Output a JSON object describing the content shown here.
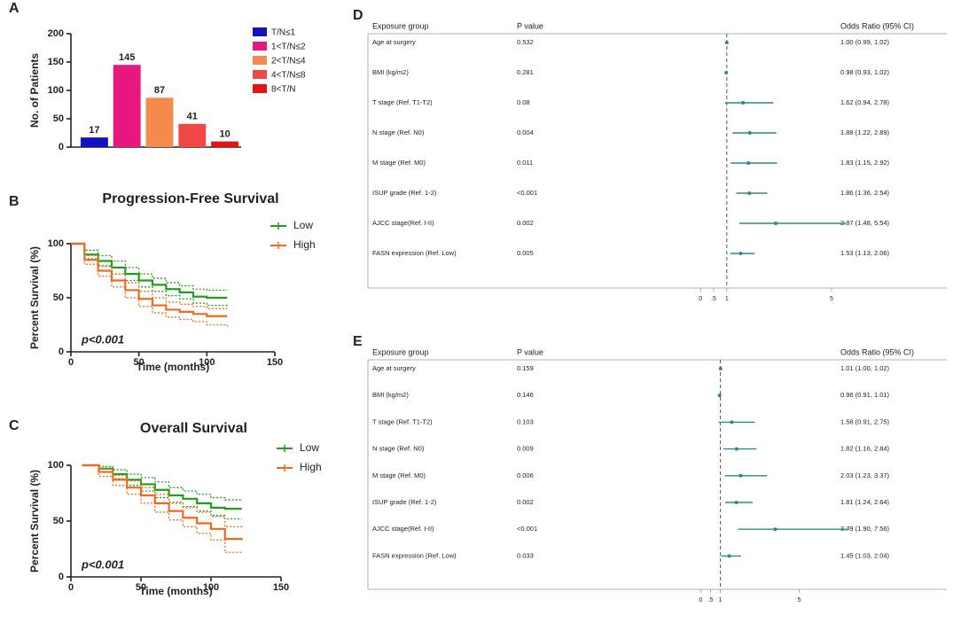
{
  "chart_data": [
    {
      "type": "bar",
      "panel": "A",
      "ylabel": "No. of Patients",
      "categories": [
        "T/N≤1",
        "1<T/N≤2",
        "2<T/N≤4",
        "4<T/N≤8",
        "8<T/N"
      ],
      "values": [
        17,
        145,
        87,
        41,
        10
      ],
      "colors": [
        "#1212c4",
        "#e8177e",
        "#f58a4e",
        "#f04646",
        "#e81212"
      ],
      "ylim": [
        0,
        200
      ],
      "yticks": [
        0,
        50,
        100,
        150,
        200
      ]
    },
    {
      "type": "line",
      "panel": "B",
      "title": "Progression-Free Survival",
      "xlabel": "Time (months)",
      "ylabel": "Percent Survival (%)",
      "annotation": "p<0.001",
      "x": [
        0,
        10,
        20,
        30,
        40,
        50,
        60,
        70,
        80,
        90,
        100,
        115
      ],
      "series": [
        {
          "name": "Low",
          "color": "#1f9e1f",
          "values": [
            100,
            90,
            84,
            78,
            72,
            66,
            62,
            58,
            55,
            51,
            50,
            50
          ],
          "lower": [
            100,
            86,
            79,
            72,
            66,
            60,
            56,
            52,
            49,
            45,
            43,
            42
          ],
          "upper": [
            100,
            94,
            89,
            84,
            78,
            72,
            68,
            64,
            61,
            58,
            57,
            57
          ]
        },
        {
          "name": "High",
          "color": "#f06a1e",
          "values": [
            100,
            85,
            75,
            66,
            57,
            49,
            43,
            39,
            37,
            35,
            33,
            33
          ],
          "lower": [
            100,
            81,
            70,
            60,
            50,
            42,
            36,
            32,
            30,
            28,
            25,
            22
          ],
          "upper": [
            100,
            89,
            80,
            72,
            64,
            56,
            50,
            46,
            44,
            42,
            40,
            40
          ]
        }
      ],
      "xlim": [
        0,
        150
      ],
      "xticks": [
        0,
        50,
        100,
        150
      ],
      "ylim": [
        0,
        100
      ],
      "yticks": [
        0,
        50,
        100
      ]
    },
    {
      "type": "line",
      "panel": "C",
      "title": "Overall Survival",
      "xlabel": "Time (months)",
      "ylabel": "Percent Survival (%)",
      "annotation": "p<0.001",
      "x": [
        8,
        20,
        30,
        40,
        50,
        60,
        70,
        80,
        90,
        100,
        110,
        122
      ],
      "series": [
        {
          "name": "Low",
          "color": "#1f9e1f",
          "values": [
            100,
            97,
            92,
            87,
            83,
            78,
            73,
            70,
            66,
            62,
            61,
            61
          ],
          "lower": [
            100,
            94,
            88,
            82,
            77,
            71,
            66,
            63,
            59,
            55,
            52,
            52
          ],
          "upper": [
            100,
            99,
            96,
            92,
            89,
            85,
            80,
            77,
            74,
            71,
            69,
            68
          ]
        },
        {
          "name": "High",
          "color": "#f06a1e",
          "values": [
            100,
            94,
            87,
            80,
            73,
            66,
            59,
            53,
            48,
            43,
            34,
            33
          ],
          "lower": [
            100,
            90,
            82,
            74,
            66,
            58,
            51,
            45,
            39,
            33,
            22,
            21
          ],
          "upper": [
            100,
            97,
            91,
            86,
            80,
            74,
            67,
            62,
            58,
            54,
            45,
            44
          ]
        }
      ],
      "xlim": [
        0,
        150
      ],
      "xticks": [
        0,
        50,
        100,
        150
      ],
      "ylim": [
        0,
        100
      ],
      "yticks": [
        0,
        50,
        100
      ]
    },
    {
      "type": "forest",
      "panel": "D",
      "headers": [
        "Exposure group",
        "P value",
        "Odds Ratio (95% CI)"
      ],
      "ref": 1,
      "color": "#2a8a8a",
      "rows": [
        {
          "label": "Age at surgery",
          "p": "0.532",
          "or": 1.0,
          "lo": 0.99,
          "hi": 1.02,
          "ci_label": "1.00 (0.99, 1.02)"
        },
        {
          "label": "BMI (kg/m2)",
          "p": "0.281",
          "or": 0.98,
          "lo": 0.93,
          "hi": 1.02,
          "ci_label": "0.98 (0.93, 1.02)"
        },
        {
          "label": "T stage (Ref. T1-T2)",
          "p": "0.08",
          "or": 1.62,
          "lo": 0.94,
          "hi": 2.78,
          "ci_label": "1.62 (0.94, 2.78)"
        },
        {
          "label": "N stage (Ref. N0)",
          "p": "0.004",
          "or": 1.88,
          "lo": 1.22,
          "hi": 2.89,
          "ci_label": "1.88 (1.22, 2.89)"
        },
        {
          "label": "M stage (Ref. M0)",
          "p": "0.011",
          "or": 1.83,
          "lo": 1.15,
          "hi": 2.92,
          "ci_label": "1.83 (1.15, 2.92)"
        },
        {
          "label": "ISUP grade (Ref. 1-2)",
          "p": "<0.001",
          "or": 1.86,
          "lo": 1.36,
          "hi": 2.54,
          "ci_label": "1.86 (1.36, 2.54)"
        },
        {
          "label": "AJCC stage(Ref. I-II)",
          "p": "0.002",
          "or": 2.87,
          "lo": 1.48,
          "hi": 5.54,
          "ci_label": "2.87 (1.48, 5.54)"
        },
        {
          "label": "FASN expression (Ref. Low)",
          "p": "0.005",
          "or": 1.53,
          "lo": 1.13,
          "hi": 2.06,
          "ci_label": "1.53 (1.13, 2.06)"
        }
      ],
      "xlim": [
        -12.7,
        9.4
      ],
      "xticks": [
        0,
        {
          "value": 0.5,
          "label": ".5"
        },
        1,
        5
      ]
    },
    {
      "type": "forest",
      "panel": "E",
      "headers": [
        "Exposure group",
        "P value",
        "Odds Ratio (95% CI)"
      ],
      "ref": 1,
      "color": "#2a8a8a",
      "rows": [
        {
          "label": "Age at surgery",
          "p": "0.159",
          "or": 1.01,
          "lo": 1.0,
          "hi": 1.02,
          "ci_label": "1.01 (1.00, 1.02)"
        },
        {
          "label": "BMI (kg/m2)",
          "p": "0.146",
          "or": 0.96,
          "lo": 0.91,
          "hi": 1.01,
          "ci_label": "0.96 (0.91, 1.01)"
        },
        {
          "label": "T stage (Ref. T1-T2)",
          "p": "0.103",
          "or": 1.58,
          "lo": 0.91,
          "hi": 2.75,
          "ci_label": "1.58 (0.91, 2.75)"
        },
        {
          "label": "N stage (Ref. N0)",
          "p": "0.009",
          "or": 1.82,
          "lo": 1.16,
          "hi": 2.84,
          "ci_label": "1.82 (1.16, 2.84)"
        },
        {
          "label": "M stage (Ref. M0)",
          "p": "0.006",
          "or": 2.03,
          "lo": 1.23,
          "hi": 3.37,
          "ci_label": "2.03 (1.23, 3.37)"
        },
        {
          "label": "ISUP grade (Ref. 1-2)",
          "p": "0.002",
          "or": 1.81,
          "lo": 1.24,
          "hi": 2.64,
          "ci_label": "1.81 (1.24, 2.64)"
        },
        {
          "label": "AJCC stage(Ref. I-II)",
          "p": "<0.001",
          "or": 3.79,
          "lo": 1.9,
          "hi": 7.56,
          "ci_label": "3.79 (1.90, 7.56)"
        },
        {
          "label": "FASN expression (Ref. Low)",
          "p": "0.033",
          "or": 1.45,
          "lo": 1.03,
          "hi": 2.04,
          "ci_label": "1.45 (1.03, 2.04)"
        }
      ],
      "xlim": [
        -16.9,
        12.5
      ],
      "xticks": [
        0,
        {
          "value": 0.5,
          "label": ".5"
        },
        1,
        5
      ]
    }
  ]
}
